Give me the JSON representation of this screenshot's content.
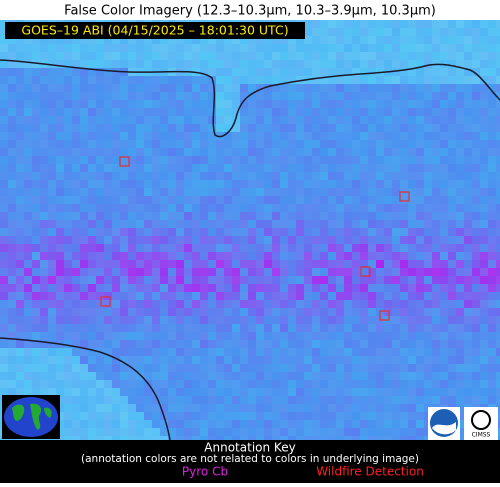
{
  "header": {
    "title": "False Color Imagery (12.3–10.3µm, 10.3–3.9µm, 10.3µm)",
    "subtitle": "GOES–19 ABI (04/15/2025 – 18:01:30 UTC)"
  },
  "annotation_key": {
    "title": "Annotation Key",
    "note": "(annotation colors are not related to colors in underlying image)",
    "items": [
      {
        "label": "Pyro Cb",
        "color": "#e020e0"
      },
      {
        "label": "Wildfire Detection",
        "color": "#ff2020"
      }
    ]
  }
}
